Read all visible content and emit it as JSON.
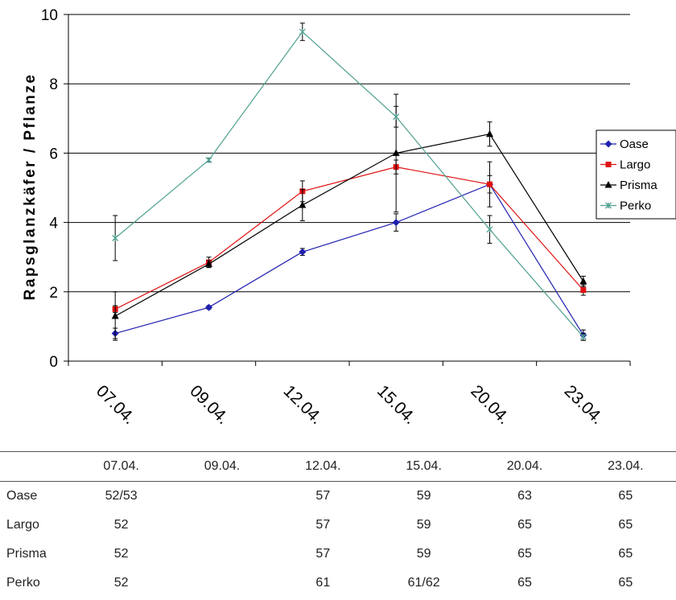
{
  "chart_data": {
    "type": "line",
    "ylabel": "Rapsglanzkäfer / Pflanze",
    "xlabel": "",
    "categories": [
      "07.04.",
      "09.04.",
      "12.04.",
      "15.04.",
      "20.04.",
      "23.04."
    ],
    "ylim": [
      0,
      10
    ],
    "yticks": [
      0,
      2,
      4,
      6,
      8,
      10
    ],
    "grid": true,
    "legend": "right",
    "series": [
      {
        "name": "Oase",
        "color": "#1f1fb0",
        "marker": "diamond",
        "values": [
          0.8,
          1.55,
          3.15,
          4.0,
          5.1,
          0.75
        ],
        "errors": [
          0.15,
          0.05,
          0.1,
          0.25,
          0.25,
          0.15
        ]
      },
      {
        "name": "Largo",
        "color": "#e01010",
        "marker": "square",
        "values": [
          1.5,
          2.85,
          4.9,
          5.6,
          5.1,
          2.05
        ],
        "errors": [
          0.1,
          0.15,
          0.3,
          0.2,
          0.65,
          0.15
        ]
      },
      {
        "name": "Prisma",
        "color": "#000000",
        "marker": "triangle",
        "values": [
          1.3,
          2.8,
          4.5,
          6.0,
          6.55,
          2.3
        ],
        "errors": [
          0.7,
          0.1,
          0.45,
          1.7,
          0.35,
          0.15
        ]
      },
      {
        "name": "Perko",
        "color": "#4fa090",
        "marker": "star",
        "values": [
          3.55,
          5.8,
          9.5,
          7.05,
          3.8,
          0.7
        ],
        "errors": [
          0.65,
          0.05,
          0.25,
          0.3,
          0.4,
          0.1
        ]
      }
    ]
  },
  "stage_table": {
    "header": [
      "",
      "07.04.",
      "09.04.",
      "12.04.",
      "15.04.",
      "20.04.",
      "23.04."
    ],
    "rows": [
      {
        "name": "Oase",
        "cells": [
          "52/53",
          "",
          "57",
          "59",
          "63",
          "65"
        ]
      },
      {
        "name": "Largo",
        "cells": [
          "52",
          "",
          "57",
          "59",
          "65",
          "65"
        ]
      },
      {
        "name": "Prisma",
        "cells": [
          "52",
          "",
          "57",
          "59",
          "65",
          "65"
        ]
      },
      {
        "name": "Perko",
        "cells": [
          "52",
          "",
          "61",
          "61/62",
          "65",
          "65"
        ]
      }
    ]
  }
}
